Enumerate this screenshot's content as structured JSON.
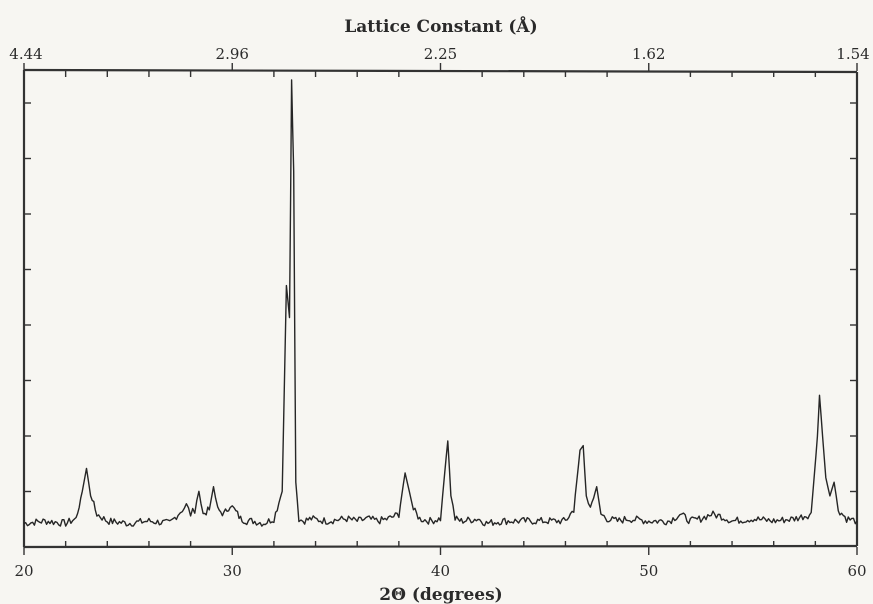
{
  "chart_data": {
    "type": "line",
    "xlabel": "2Θ (degrees)",
    "top_axis_label": "Lattice Constant (Å)",
    "xlim": [
      20,
      60
    ],
    "ylim": [
      0,
      100
    ],
    "bottom_ticks": [
      {
        "value": 20,
        "label": "20"
      },
      {
        "value": 30,
        "label": "30"
      },
      {
        "value": 40,
        "label": "40"
      },
      {
        "value": 50,
        "label": "50"
      },
      {
        "value": 60,
        "label": "60"
      }
    ],
    "top_ticks": [
      {
        "value": 20,
        "label": "4.44"
      },
      {
        "value": 30,
        "label": "2.96"
      },
      {
        "value": 40,
        "label": "2.25"
      },
      {
        "value": 50,
        "label": "1.62"
      },
      {
        "value": 60,
        "label": "1.54"
      }
    ],
    "series": [
      {
        "x": [
          20.0,
          21.0,
          22.0,
          22.5,
          22.8,
          23.0,
          23.2,
          23.5,
          24.0,
          25.0,
          26.0,
          27.0,
          27.4,
          27.6,
          27.8,
          28.0,
          28.2,
          28.4,
          28.6,
          28.9,
          29.1,
          29.3,
          29.6,
          29.9,
          30.1,
          30.4,
          30.7,
          31.0,
          31.5,
          32.0,
          32.4,
          32.6,
          32.75,
          32.85,
          32.95,
          33.05,
          33.2,
          33.4,
          33.8,
          34.5,
          35.5,
          36.0,
          36.5,
          37.0,
          37.5,
          38.0,
          38.3,
          38.5,
          38.7,
          39.0,
          39.5,
          40.0,
          40.2,
          40.35,
          40.5,
          40.7,
          41.0,
          41.8,
          42.2,
          43.0,
          44.0,
          45.0,
          46.0,
          46.4,
          46.7,
          46.85,
          47.0,
          47.2,
          47.5,
          47.7,
          48.0,
          48.5,
          49.0,
          50.0,
          51.0,
          51.5,
          52.0,
          52.5,
          53.0,
          53.5,
          54.0,
          55.0,
          56.0,
          57.0,
          57.8,
          58.1,
          58.2,
          58.35,
          58.5,
          58.7,
          58.9,
          59.1,
          59.5,
          60.0
        ],
        "y": [
          3,
          3.5,
          3,
          4,
          10,
          15,
          9,
          5,
          3.5,
          3,
          3.5,
          3,
          5,
          6,
          7,
          5,
          6,
          10,
          5,
          6,
          11,
          6,
          5,
          7,
          6,
          4,
          3.5,
          3.5,
          3,
          4,
          10,
          55,
          48,
          100,
          80,
          12,
          4,
          3.5,
          4,
          3.5,
          4,
          3.5,
          4,
          3.5,
          4,
          5,
          14,
          10,
          6,
          4,
          3.5,
          4,
          14,
          21,
          9,
          4,
          3.5,
          4,
          3,
          3.5,
          3.5,
          3.5,
          3.5,
          6,
          19,
          20,
          9,
          6,
          11,
          5,
          4,
          3.5,
          4,
          3.5,
          3.5,
          5,
          3.5,
          4,
          5,
          4.5,
          3.5,
          4,
          3.5,
          4,
          5,
          22,
          31,
          22,
          13,
          9,
          12,
          6,
          4,
          3.5
        ]
      }
    ]
  }
}
